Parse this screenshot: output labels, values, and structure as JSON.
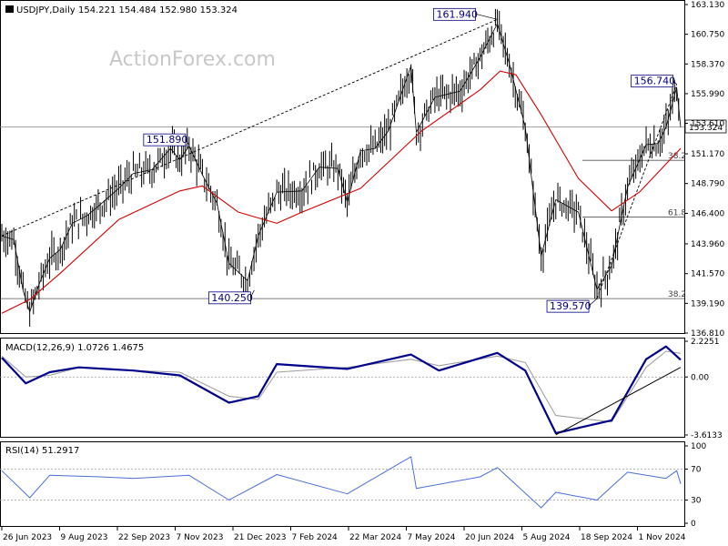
{
  "header": {
    "symbol": "USDJPY,Daily",
    "ohlc": "154.221 154.484 152.980 153.324",
    "watermark": "ActionForex.com"
  },
  "price_panel": {
    "current_price": "153.324",
    "price_ticks": [
      "163.130",
      "160.750",
      "158.370",
      "155.990",
      "153.610",
      "151.170",
      "148.790",
      "146.400",
      "143.960",
      "141.570",
      "139.190",
      "136.810"
    ],
    "labels": {
      "high1": "151.890",
      "low1": "140.250",
      "high2": "161.940",
      "low2": "139.570",
      "high3": "156.740"
    },
    "fib_labels": {
      "upper_382": "38.2",
      "upper_618": "61.8",
      "lower_382": "38.2"
    }
  },
  "macd_panel": {
    "title": "MACD(12,26,9) 1.0726 1.4675",
    "ticks": [
      "2.2251",
      "0.00",
      "-3.6133"
    ]
  },
  "rsi_panel": {
    "title": "RSI(14) 51.2917",
    "ticks": [
      "100",
      "70",
      "30",
      "0"
    ]
  },
  "x_axis": {
    "labels": [
      "26 Jun 2023",
      "9 Aug 2023",
      "22 Sep 2023",
      "7 Nov 2023",
      "21 Dec 2023",
      "7 Feb 2024",
      "22 Mar 2024",
      "7 May 2024",
      "20 Jun 2024",
      "5 Aug 2024",
      "18 Sep 2024",
      "1 Nov 2024"
    ]
  },
  "colors": {
    "price": "#000000",
    "ma": "#d40000",
    "macd": "#00008b",
    "signal": "#a0a0a0",
    "label_border": "#00007f"
  },
  "chart_data": {
    "type": "line",
    "title": "USDJPY,Daily",
    "x_range": [
      "2023-06-26",
      "2024-11-18"
    ],
    "price": {
      "ylim": [
        136.81,
        163.13
      ],
      "candles_approx": [
        [
          "2023-06-26",
          144.6
        ],
        [
          "2023-07-05",
          144.3
        ],
        [
          "2023-07-12",
          140.2
        ],
        [
          "2023-07-17",
          138.5
        ],
        [
          "2023-07-24",
          140.7
        ],
        [
          "2023-08-01",
          142.8
        ],
        [
          "2023-08-09",
          143.5
        ],
        [
          "2023-08-18",
          145.6
        ],
        [
          "2023-08-29",
          146.2
        ],
        [
          "2023-09-08",
          147.1
        ],
        [
          "2023-09-22",
          148.4
        ],
        [
          "2023-10-03",
          149.6
        ],
        [
          "2023-10-17",
          149.9
        ],
        [
          "2023-10-31",
          151.6
        ],
        [
          "2023-11-07",
          150.7
        ],
        [
          "2023-11-14",
          151.8
        ],
        [
          "2023-11-24",
          149.5
        ],
        [
          "2023-12-05",
          147.2
        ],
        [
          "2023-12-14",
          142.4
        ],
        [
          "2023-12-28",
          141.0
        ],
        [
          "2024-01-05",
          144.6
        ],
        [
          "2024-01-19",
          148.1
        ],
        [
          "2024-02-07",
          148.2
        ],
        [
          "2024-02-20",
          150.1
        ],
        [
          "2024-03-05",
          150.0
        ],
        [
          "2024-03-12",
          147.3
        ],
        [
          "2024-03-22",
          151.4
        ],
        [
          "2024-04-02",
          151.6
        ],
        [
          "2024-04-12",
          153.0
        ],
        [
          "2024-04-29",
          158.2
        ],
        [
          "2024-05-03",
          152.9
        ],
        [
          "2024-05-17",
          155.7
        ],
        [
          "2024-06-05",
          156.2
        ],
        [
          "2024-06-20",
          158.9
        ],
        [
          "2024-07-03",
          161.6
        ],
        [
          "2024-07-12",
          158.4
        ],
        [
          "2024-07-24",
          153.3
        ],
        [
          "2024-08-05",
          143.0
        ],
        [
          "2024-08-16",
          147.5
        ],
        [
          "2024-09-02",
          146.5
        ],
        [
          "2024-09-16",
          140.3
        ],
        [
          "2024-09-27",
          142.2
        ],
        [
          "2024-10-09",
          148.5
        ],
        [
          "2024-10-23",
          151.9
        ],
        [
          "2024-11-01",
          152.0
        ],
        [
          "2024-11-07",
          153.3
        ],
        [
          "2024-11-15",
          156.5
        ],
        [
          "2024-11-18",
          153.3
        ]
      ],
      "moving_average_approx": [
        [
          "2023-06-26",
          138.4
        ],
        [
          "2023-07-17",
          139.5
        ],
        [
          "2023-08-09",
          141.6
        ],
        [
          "2023-09-22",
          145.9
        ],
        [
          "2023-11-07",
          148.2
        ],
        [
          "2023-11-24",
          148.6
        ],
        [
          "2023-12-21",
          146.5
        ],
        [
          "2024-01-19",
          145.6
        ],
        [
          "2024-02-07",
          146.5
        ],
        [
          "2024-03-22",
          148.4
        ],
        [
          "2024-05-07",
          153.0
        ],
        [
          "2024-06-20",
          156.3
        ],
        [
          "2024-07-05",
          157.8
        ],
        [
          "2024-07-17",
          157.5
        ],
        [
          "2024-08-05",
          154.3
        ],
        [
          "2024-09-02",
          149.2
        ],
        [
          "2024-09-27",
          146.6
        ],
        [
          "2024-10-18",
          148.1
        ],
        [
          "2024-11-18",
          151.6
        ]
      ],
      "annotations": [
        {
          "label": "151.890",
          "date": "2023-11-14",
          "value": 151.89
        },
        {
          "label": "140.250",
          "date": "2024-01-02",
          "value": 140.25
        },
        {
          "label": "161.940",
          "date": "2024-07-03",
          "value": 161.94
        },
        {
          "label": "139.570",
          "date": "2024-09-16",
          "value": 139.57
        },
        {
          "label": "156.740",
          "date": "2024-11-15",
          "value": 156.74
        }
      ],
      "horizontal_levels": [
        {
          "label": "38.2",
          "value": 150.65
        },
        {
          "label": "61.8",
          "value": 146.1
        },
        {
          "label": "38.2",
          "value": 139.57
        }
      ],
      "trendlines": [
        {
          "from": [
            "2023-06-26",
            144.6
          ],
          "to": [
            "2024-07-03",
            161.94
          ],
          "style": "dashed"
        },
        {
          "from": [
            "2024-09-16",
            139.57
          ],
          "to": [
            "2024-11-15",
            156.74
          ],
          "style": "dashed"
        }
      ]
    },
    "macd": {
      "ylim": [
        -3.6133,
        2.2251
      ],
      "macd_approx": [
        [
          "2023-06-26",
          1.2
        ],
        [
          "2023-07-14",
          -0.4
        ],
        [
          "2023-08-01",
          0.3
        ],
        [
          "2023-08-23",
          0.6
        ],
        [
          "2023-10-03",
          0.4
        ],
        [
          "2023-11-07",
          0.1
        ],
        [
          "2023-12-14",
          -1.6
        ],
        [
          "2024-01-05",
          -1.2
        ],
        [
          "2024-01-19",
          0.8
        ],
        [
          "2024-03-12",
          0.5
        ],
        [
          "2024-04-29",
          1.4
        ],
        [
          "2024-05-20",
          0.4
        ],
        [
          "2024-07-03",
          1.5
        ],
        [
          "2024-07-24",
          0.4
        ],
        [
          "2024-08-16",
          -3.5
        ],
        [
          "2024-09-27",
          -2.7
        ],
        [
          "2024-10-23",
          1.1
        ],
        [
          "2024-11-07",
          1.9
        ],
        [
          "2024-11-18",
          1.07
        ]
      ],
      "signal_approx": [
        [
          "2023-06-26",
          1.3
        ],
        [
          "2023-07-14",
          0.0
        ],
        [
          "2023-08-01",
          0.1
        ],
        [
          "2023-08-23",
          0.6
        ],
        [
          "2023-10-03",
          0.4
        ],
        [
          "2023-11-07",
          0.3
        ],
        [
          "2023-12-14",
          -1.2
        ],
        [
          "2024-01-05",
          -1.4
        ],
        [
          "2024-01-19",
          0.3
        ],
        [
          "2024-03-12",
          0.6
        ],
        [
          "2024-04-29",
          1.1
        ],
        [
          "2024-05-20",
          0.7
        ],
        [
          "2024-07-03",
          1.3
        ],
        [
          "2024-07-24",
          0.9
        ],
        [
          "2024-08-16",
          -2.4
        ],
        [
          "2024-09-27",
          -2.8
        ],
        [
          "2024-10-23",
          0.6
        ],
        [
          "2024-11-07",
          1.6
        ],
        [
          "2024-11-18",
          1.47
        ]
      ],
      "trendline": {
        "from": [
          "2024-08-16",
          -3.6
        ],
        "to": [
          "2024-11-18",
          0.6
        ]
      }
    },
    "rsi": {
      "ylim": [
        0,
        100
      ],
      "levels": [
        70,
        30
      ],
      "rsi_approx": [
        [
          "2023-06-26",
          68
        ],
        [
          "2023-07-17",
          33
        ],
        [
          "2023-08-01",
          62
        ],
        [
          "2023-09-08",
          60
        ],
        [
          "2023-10-03",
          58
        ],
        [
          "2023-11-14",
          62
        ],
        [
          "2023-12-14",
          30
        ],
        [
          "2024-01-19",
          63
        ],
        [
          "2024-03-12",
          38
        ],
        [
          "2024-04-29",
          86
        ],
        [
          "2024-05-03",
          45
        ],
        [
          "2024-06-20",
          60
        ],
        [
          "2024-07-03",
          72
        ],
        [
          "2024-08-05",
          20
        ],
        [
          "2024-08-16",
          40
        ],
        [
          "2024-09-16",
          30
        ],
        [
          "2024-10-09",
          66
        ],
        [
          "2024-11-07",
          58
        ],
        [
          "2024-11-15",
          68
        ],
        [
          "2024-11-18",
          51
        ]
      ]
    }
  }
}
